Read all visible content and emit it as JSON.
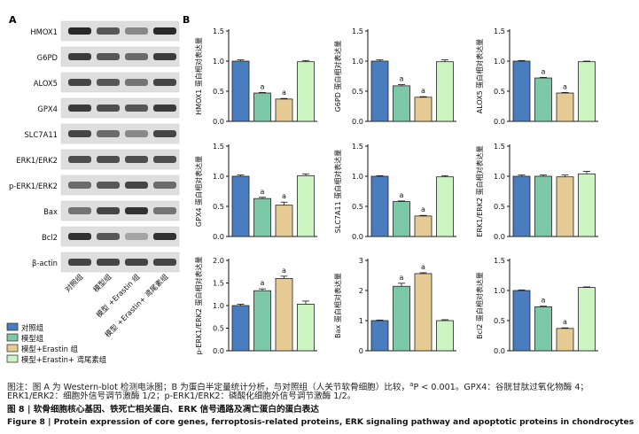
{
  "panel_labels": {
    "a": "A",
    "b": "B"
  },
  "blot_labels": [
    "HMOX1",
    "G6PD",
    "ALOX5",
    "GPX4",
    "SLC7A11",
    "ERK1/ERK2",
    "p-ERK1/ERK2",
    "Bax",
    "Bcl2",
    "β-actin"
  ],
  "lane_labels": [
    "对照组",
    "模型组",
    "模型 +Erastin 组",
    "模型 +Erastin+ 鸢尾素组"
  ],
  "legend": [
    {
      "label": "对照组",
      "color": "#4a7cc0"
    },
    {
      "label": "模型组",
      "color": "#7dc8a6"
    },
    {
      "label": "模型+Erastin 组",
      "color": "#e6cb95"
    },
    {
      "label": "模型+Erastin+ 鸢尾素组",
      "color": "#cdf5c2"
    }
  ],
  "colors": {
    "edge": "#222222",
    "blot_bg": "#dedede",
    "band": "#1e1e1e"
  },
  "caption": {
    "line1_a": "图注：图 A 为 Western-blot 检测电泳图；B 为蛋白半定量统计分析，与对照组（人关节软骨细胞）比较，",
    "line1_sup": "a",
    "line1_b": "P < 0.001。GPX4：谷胱甘肽过氧化物酶 4；",
    "line2": "ERK1/ERK2：细胞外信号调节激酶 1/2；p-ERK1/ERK2：磷酸化细胞外信号调节激酶 1/2。",
    "line3": "图 8 | 软骨细胞核心基因、铁死亡相关蛋白、ERK 信号通路及凋亡蛋白的蛋白表达",
    "line4": "Figure 8 | Protein expression of core genes, ferroptosis-related proteins, ERK signaling pathway and apoptotic proteins in chondrocytes"
  },
  "chart_data": [
    {
      "type": "bar",
      "ylabel": "HMOX1 蛋白相对表达量",
      "ylim": [
        0,
        1.5
      ],
      "yticks": [
        "0.0",
        "0.5",
        "1.0",
        "1.5"
      ],
      "values": [
        1.0,
        0.47,
        0.37,
        0.99
      ],
      "errors": [
        0.02,
        0.01,
        0.01,
        0.02
      ],
      "sig": [
        "",
        "a",
        "a",
        ""
      ]
    },
    {
      "type": "bar",
      "ylabel": "G6PD 蛋白相对表达量",
      "ylim": [
        0,
        1.5
      ],
      "yticks": [
        "0.0",
        "0.5",
        "1.0",
        "1.5"
      ],
      "values": [
        1.0,
        0.59,
        0.4,
        0.99
      ],
      "errors": [
        0.02,
        0.02,
        0.01,
        0.03
      ],
      "sig": [
        "",
        "a",
        "a",
        ""
      ]
    },
    {
      "type": "bar",
      "ylabel": "ALOX5 蛋白相对表达量",
      "ylim": [
        0,
        1.5
      ],
      "yticks": [
        "0.0",
        "0.5",
        "1.0",
        "1.5"
      ],
      "values": [
        1.0,
        0.72,
        0.47,
        0.99
      ],
      "errors": [
        0.01,
        0.01,
        0.01,
        0.01
      ],
      "sig": [
        "",
        "a",
        "a",
        ""
      ]
    },
    {
      "type": "bar",
      "ylabel": "GPX4 蛋白相对表达量",
      "ylim": [
        0,
        1.5
      ],
      "yticks": [
        "0.0",
        "0.5",
        "1.0",
        "1.5"
      ],
      "values": [
        1.0,
        0.63,
        0.52,
        1.01
      ],
      "errors": [
        0.02,
        0.02,
        0.05,
        0.03
      ],
      "sig": [
        "",
        "a",
        "a",
        ""
      ]
    },
    {
      "type": "bar",
      "ylabel": "SLC7A11 蛋白相对表达量",
      "ylim": [
        0,
        1.5
      ],
      "yticks": [
        "0.0",
        "0.5",
        "1.0",
        "1.5"
      ],
      "values": [
        1.0,
        0.58,
        0.34,
        0.99
      ],
      "errors": [
        0.01,
        0.01,
        0.01,
        0.02
      ],
      "sig": [
        "",
        "a",
        "a",
        ""
      ]
    },
    {
      "type": "bar",
      "ylabel": "ERK1/ERK2 蛋白相对表达量",
      "ylim": [
        0,
        1.5
      ],
      "yticks": [
        "0.0",
        "0.5",
        "1.0",
        "1.5"
      ],
      "values": [
        1.0,
        1.0,
        0.99,
        1.04
      ],
      "errors": [
        0.02,
        0.02,
        0.03,
        0.04
      ],
      "sig": [
        "",
        "",
        "",
        ""
      ]
    },
    {
      "type": "bar",
      "ylabel": "p-ERK1/ERK2 蛋白相对表达量",
      "ylim": [
        0,
        2.0
      ],
      "yticks": [
        "0.0",
        "0.5",
        "1.0",
        "1.5",
        "2.0"
      ],
      "values": [
        1.0,
        1.33,
        1.6,
        1.03
      ],
      "errors": [
        0.03,
        0.04,
        0.05,
        0.07
      ],
      "sig": [
        "",
        "a",
        "a",
        ""
      ]
    },
    {
      "type": "bar",
      "ylabel": "Bax 蛋白相对表达量",
      "ylim": [
        0,
        3
      ],
      "yticks": [
        "0",
        "1",
        "2",
        "3"
      ],
      "values": [
        1.0,
        2.14,
        2.56,
        1.0
      ],
      "errors": [
        0.02,
        0.1,
        0.03,
        0.03
      ],
      "sig": [
        "",
        "a",
        "a",
        ""
      ]
    },
    {
      "type": "bar",
      "ylabel": "Bcl2 蛋白相对表达量",
      "ylim": [
        0,
        1.5
      ],
      "yticks": [
        "0.0",
        "0.5",
        "1.0",
        "1.5"
      ],
      "values": [
        1.0,
        0.73,
        0.37,
        1.05
      ],
      "errors": [
        0.01,
        0.01,
        0.01,
        0.01
      ],
      "sig": [
        "",
        "a",
        "a",
        ""
      ]
    }
  ]
}
